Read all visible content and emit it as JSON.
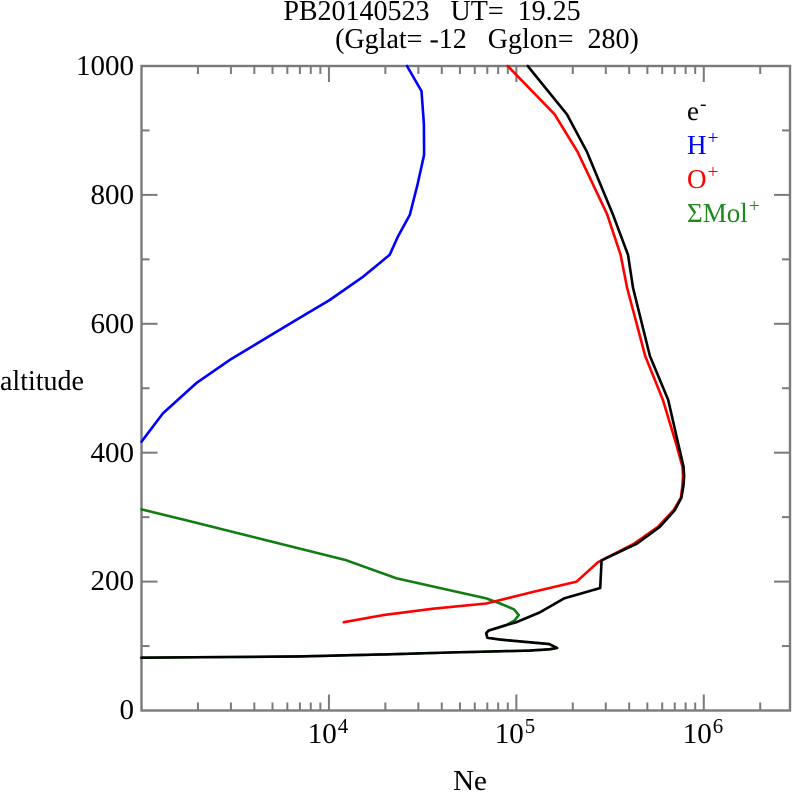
{
  "title": "PB20140523   UT=  19.25",
  "subtitle": "(Gglat= -12   Gglon=  280)",
  "colors": {
    "axis": "#7a7a7a",
    "tick": "#7a7a7a",
    "text": "#000000"
  },
  "axes": {
    "y": {
      "label": "altitude",
      "min": 0,
      "max": 1000,
      "major_step": 200,
      "minor_step": 100,
      "tick_labels": [
        "0",
        "200",
        "400",
        "600",
        "800",
        "1000"
      ]
    },
    "x": {
      "label": "Ne",
      "scale": "log",
      "base": "10",
      "exponents": [
        "4",
        "5",
        "6"
      ],
      "log_min": 3,
      "log_max": 6.46
    }
  },
  "legend": {
    "position": "upper-right-inside",
    "items": [
      {
        "base": "e",
        "sup": "-",
        "color": "#000000"
      },
      {
        "base": "H",
        "sup": "+",
        "color": "#0000ff"
      },
      {
        "base": "O",
        "sup": "+",
        "color": "#ff0000"
      },
      {
        "base": "ΣMol",
        "sup": "+",
        "color": "#1d8a1d"
      }
    ]
  },
  "chart_data": {
    "type": "line",
    "title": "PB20140523 UT= 19.25 (Gglat= -12 Gglon= 280)",
    "xlabel": "Ne",
    "ylabel": "altitude",
    "x_scale": "log",
    "x_range": [
      1000,
      2900000
    ],
    "y_range": [
      0,
      1000
    ],
    "grid": false,
    "legend_position": "upper right",
    "series": [
      {
        "name": "SigmaMol+",
        "color": "#117d11",
        "points": [
          [
            1000,
            82
          ],
          [
            3000,
            83
          ],
          [
            7000,
            84
          ],
          [
            20000,
            87
          ],
          [
            44000,
            90
          ],
          [
            118000,
            93
          ],
          [
            150000,
            95
          ],
          [
            165000,
            97
          ],
          [
            150000,
            103
          ],
          [
            82000,
            110
          ],
          [
            70000,
            113
          ],
          [
            69000,
            120
          ],
          [
            71000,
            124
          ],
          [
            88000,
            132
          ],
          [
            98000,
            140
          ],
          [
            103000,
            148
          ],
          [
            97000,
            157
          ],
          [
            82000,
            166
          ],
          [
            69000,
            174
          ],
          [
            23000,
            205
          ],
          [
            12400,
            233
          ],
          [
            4950,
            262
          ],
          [
            1740,
            295
          ],
          [
            1000,
            312
          ]
        ]
      },
      {
        "name": "H+",
        "color": "#0000ff",
        "points": [
          [
            1000,
            417
          ],
          [
            1300,
            461
          ],
          [
            1960,
            508
          ],
          [
            2960,
            544
          ],
          [
            4450,
            575
          ],
          [
            6700,
            606
          ],
          [
            10100,
            637
          ],
          [
            15200,
            673
          ],
          [
            21100,
            707
          ],
          [
            23300,
            735
          ],
          [
            27000,
            769
          ],
          [
            29700,
            816
          ],
          [
            32200,
            862
          ],
          [
            32100,
            910
          ],
          [
            31200,
            961
          ],
          [
            26100,
            1000
          ]
        ]
      },
      {
        "name": "O+",
        "color": "#ff0000",
        "points": [
          [
            12000,
            137
          ],
          [
            19500,
            148
          ],
          [
            36000,
            158
          ],
          [
            69000,
            166
          ],
          [
            123000,
            184
          ],
          [
            210000,
            200
          ],
          [
            272000,
            230
          ],
          [
            425000,
            259
          ],
          [
            570000,
            285
          ],
          [
            690000,
            311
          ],
          [
            755000,
            330
          ],
          [
            770000,
            350
          ],
          [
            775000,
            364
          ],
          [
            770000,
            378
          ],
          [
            712000,
            414
          ],
          [
            605000,
            482
          ],
          [
            487000,
            550
          ],
          [
            390000,
            656
          ],
          [
            360000,
            707
          ],
          [
            305000,
            770
          ],
          [
            212000,
            867
          ],
          [
            160000,
            925
          ],
          [
            90000,
            1000
          ]
        ]
      },
      {
        "name": "e-",
        "color": "#000000",
        "points": [
          [
            1000,
            82
          ],
          [
            3000,
            83
          ],
          [
            7000,
            84
          ],
          [
            20000,
            87
          ],
          [
            44000,
            90
          ],
          [
            118000,
            93
          ],
          [
            150000,
            95
          ],
          [
            165000,
            97
          ],
          [
            150000,
            103
          ],
          [
            82000,
            110
          ],
          [
            70000,
            113
          ],
          [
            69000,
            120
          ],
          [
            71000,
            124
          ],
          [
            87000,
            132
          ],
          [
            100000,
            137
          ],
          [
            133000,
            152
          ],
          [
            180000,
            174
          ],
          [
            280000,
            190
          ],
          [
            283000,
            215
          ],
          [
            285000,
            233
          ],
          [
            440000,
            259
          ],
          [
            583000,
            285
          ],
          [
            700000,
            311
          ],
          [
            760000,
            330
          ],
          [
            780000,
            350
          ],
          [
            785000,
            364
          ],
          [
            780000,
            378
          ],
          [
            730000,
            414
          ],
          [
            646000,
            482
          ],
          [
            516000,
            550
          ],
          [
            419000,
            656
          ],
          [
            394000,
            707
          ],
          [
            327000,
            770
          ],
          [
            238000,
            867
          ],
          [
            186000,
            925
          ],
          [
            115000,
            1000
          ]
        ]
      }
    ]
  }
}
